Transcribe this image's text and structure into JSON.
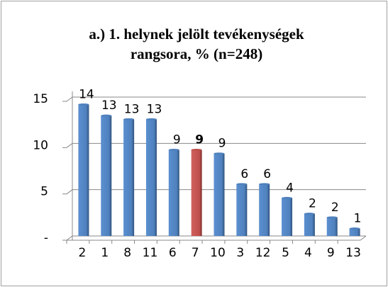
{
  "chart_data": {
    "type": "bar",
    "title": [
      "a.) 1. helynek jelölt tevékenységek",
      "rangsora, % (n=248)"
    ],
    "categories": [
      "2",
      "1",
      "8",
      "11",
      "6",
      "7",
      "10",
      "3",
      "12",
      "5",
      "4",
      "9",
      "13"
    ],
    "values": [
      14.2,
      13,
      12.6,
      12.6,
      9.3,
      9.3,
      8.9,
      5.6,
      5.6,
      4.1,
      2.4,
      2.0,
      0.8
    ],
    "value_labels": [
      "14",
      "13",
      "13",
      "13",
      "9",
      "9",
      "9",
      "6",
      "6",
      "4",
      "2",
      "2",
      "1"
    ],
    "color": "#4f81bd",
    "colors": [
      "#4f81bd",
      "#4f81bd",
      "#4f81bd",
      "#4f81bd",
      "#4f81bd",
      "#c0504d",
      "#4f81bd",
      "#4f81bd",
      "#4f81bd",
      "#4f81bd",
      "#4f81bd",
      "#4f81bd",
      "#4f81bd"
    ],
    "ylim": [
      0,
      15
    ],
    "yticks": [
      {
        "value": 0,
        "label": "-"
      },
      5,
      10,
      15
    ],
    "grid": true
  }
}
